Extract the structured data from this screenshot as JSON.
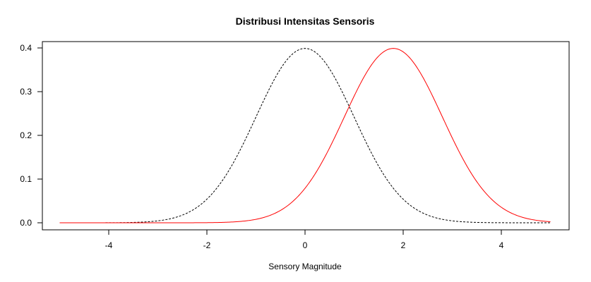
{
  "chart_data": {
    "type": "line",
    "title": "Distribusi Intensitas Sensoris",
    "xlabel": "Sensory Magnitude",
    "ylabel": "",
    "xlim": [
      -5,
      5
    ],
    "ylim": [
      0,
      0.4
    ],
    "xticks": [
      "-4",
      "-2",
      "0",
      "2",
      "4"
    ],
    "yticks": [
      "0.0",
      "0.1",
      "0.2",
      "0.3",
      "0.4"
    ],
    "grid": false,
    "legend": "none",
    "series": [
      {
        "mean": 0,
        "sd": 1,
        "color": "#000000",
        "style": "dashed",
        "x_from": -5,
        "x_to": 5
      },
      {
        "mean": 1.8,
        "sd": 1,
        "color": "#ff0000",
        "style": "solid",
        "x_from": -5,
        "x_to": 5
      }
    ]
  }
}
